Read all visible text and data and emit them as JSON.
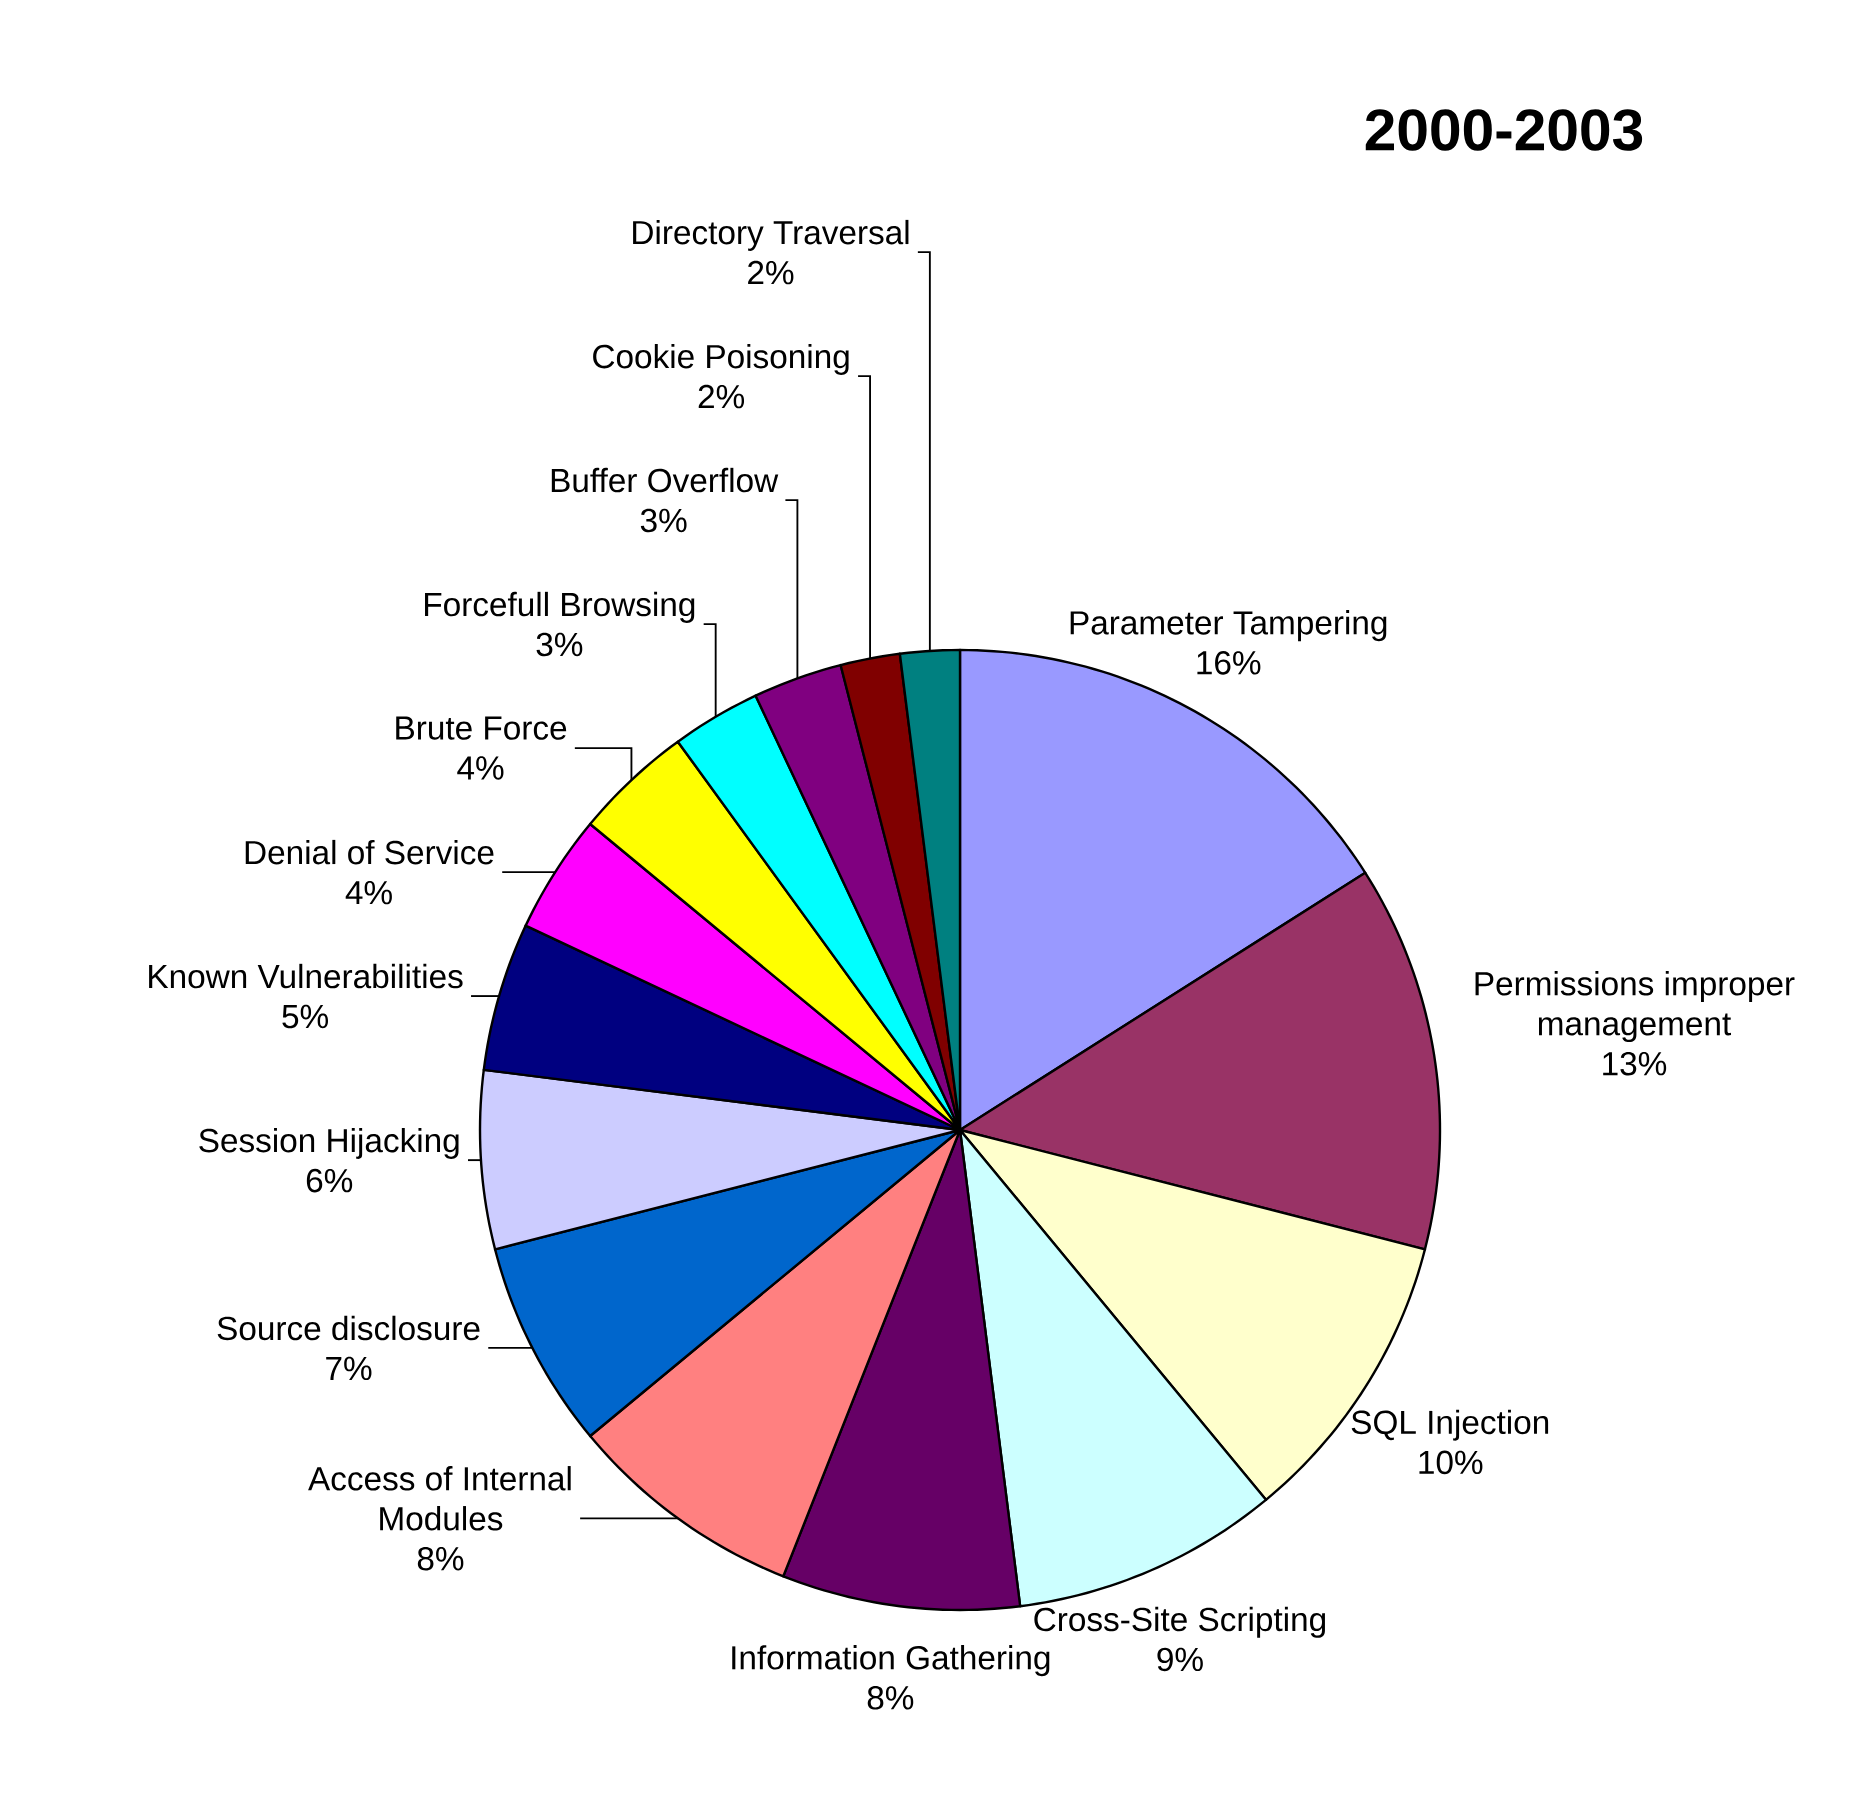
{
  "chart_data": {
    "type": "pie",
    "title": "2000-2003",
    "categories": [
      "Parameter Tampering",
      "Permissions improper management",
      "SQL Injection",
      "Cross-Site Scripting",
      "Information Gathering",
      "Access of Internal Modules",
      "Source disclosure",
      "Session Hijacking",
      "Known Vulnerabilities",
      "Denial of Service",
      "Brute Force",
      "Forcefull Browsing",
      "Buffer Overflow",
      "Cookie Poisoning",
      "Directory Traversal"
    ],
    "values": [
      16,
      13,
      10,
      9,
      8,
      8,
      7,
      6,
      5,
      4,
      4,
      3,
      3,
      2,
      2
    ],
    "value_labels": [
      "16%",
      "13%",
      "10%",
      "9%",
      "8%",
      "8%",
      "7%",
      "6%",
      "5%",
      "4%",
      "4%",
      "3%",
      "3%",
      "2%",
      "2%"
    ],
    "colors": [
      "#9999ff",
      "#993366",
      "#ffffcc",
      "#ccffff",
      "#660066",
      "#ff8080",
      "#0066cc",
      "#ccccff",
      "#000080",
      "#ff00ff",
      "#ffff00",
      "#00ffff",
      "#800080",
      "#800000",
      "#008080"
    ]
  }
}
